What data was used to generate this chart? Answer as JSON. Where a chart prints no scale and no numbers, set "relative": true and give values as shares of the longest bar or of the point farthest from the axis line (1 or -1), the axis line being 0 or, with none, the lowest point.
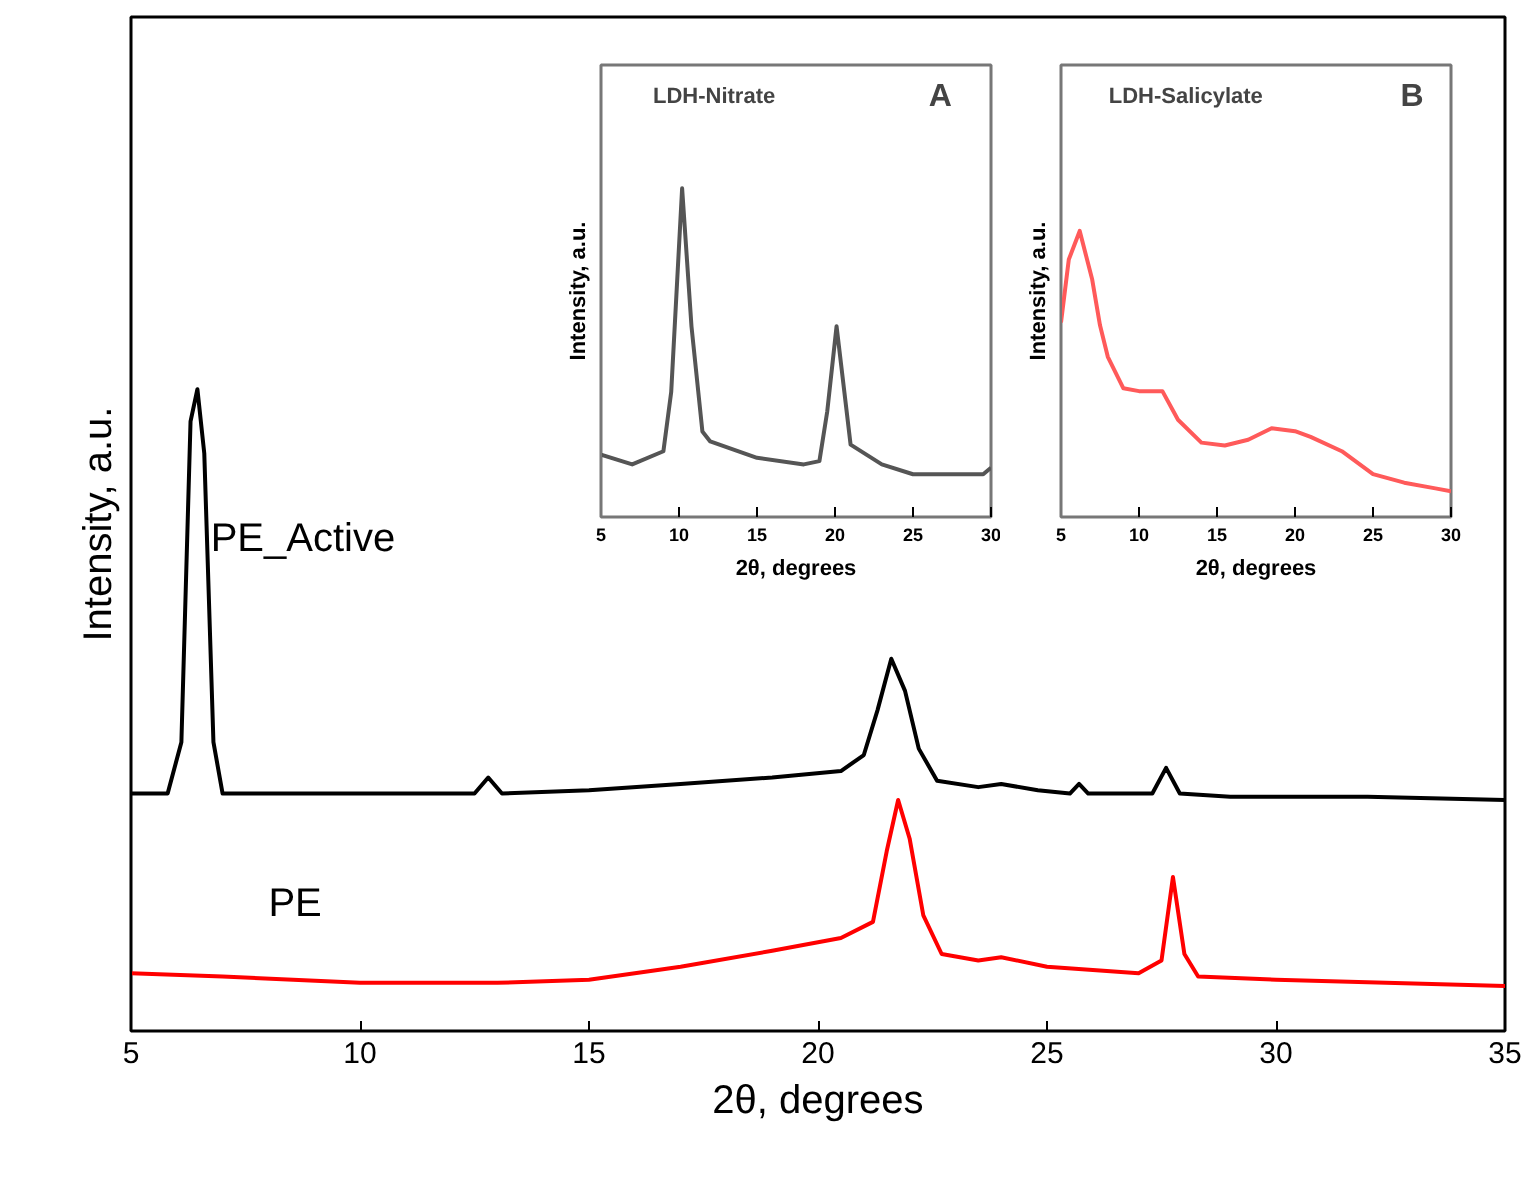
{
  "chart_data": [
    {
      "type": "line",
      "relative": true,
      "xlabel": "2θ, degrees",
      "ylabel": "Intensity, a.u.",
      "xlim": [
        5,
        35
      ],
      "xticks": [
        5,
        10,
        15,
        20,
        25,
        30,
        35
      ],
      "series": [
        {
          "name": "PE_Active",
          "color": "#000000",
          "x": [
            5,
            5.8,
            6.1,
            6.3,
            6.45,
            6.6,
            6.8,
            7.0,
            10,
            12.5,
            12.8,
            13.1,
            15,
            17,
            19,
            20.5,
            21.0,
            21.3,
            21.6,
            21.9,
            22.2,
            22.6,
            23.5,
            24,
            24.8,
            25.5,
            25.7,
            25.9,
            27.3,
            27.6,
            27.9,
            29,
            32,
            35
          ],
          "values": [
            0.37,
            0.37,
            0.45,
            0.95,
            1.0,
            0.9,
            0.45,
            0.37,
            0.37,
            0.37,
            0.395,
            0.37,
            0.375,
            0.385,
            0.395,
            0.405,
            0.43,
            0.5,
            0.58,
            0.53,
            0.44,
            0.39,
            0.38,
            0.385,
            0.375,
            0.37,
            0.385,
            0.37,
            0.37,
            0.41,
            0.37,
            0.365,
            0.365,
            0.36
          ]
        },
        {
          "name": "PE",
          "color": "#ff0000",
          "x": [
            5,
            7,
            10,
            13,
            15,
            17,
            19,
            20.5,
            21.2,
            21.5,
            21.75,
            22.0,
            22.3,
            22.7,
            23.5,
            24,
            25,
            27,
            27.5,
            27.75,
            28.0,
            28.3,
            30,
            35
          ],
          "values": [
            0.09,
            0.085,
            0.075,
            0.075,
            0.08,
            0.1,
            0.125,
            0.145,
            0.17,
            0.28,
            0.36,
            0.3,
            0.18,
            0.12,
            0.11,
            0.115,
            0.1,
            0.09,
            0.11,
            0.24,
            0.12,
            0.085,
            0.08,
            0.07
          ]
        }
      ]
    },
    {
      "type": "line",
      "relative": true,
      "title": "LDH-Nitrate",
      "annotations": [
        "A"
      ],
      "xlabel": "2θ, degrees",
      "ylabel": "Intensity, a.u.",
      "xlim": [
        5,
        30
      ],
      "xticks": [
        5,
        10,
        15,
        20,
        25,
        30
      ],
      "series": [
        {
          "color": "#555555",
          "x": [
            5,
            7,
            9,
            9.5,
            10.2,
            10.8,
            11.5,
            12,
            15,
            18,
            19,
            19.5,
            20.1,
            20.6,
            21,
            23,
            25,
            28,
            29.5,
            30
          ],
          "values": [
            0.19,
            0.16,
            0.2,
            0.38,
            1.0,
            0.58,
            0.26,
            0.23,
            0.18,
            0.16,
            0.17,
            0.32,
            0.58,
            0.38,
            0.22,
            0.16,
            0.13,
            0.13,
            0.13,
            0.15
          ]
        }
      ]
    },
    {
      "type": "line",
      "relative": true,
      "title": "LDH-Salicylate",
      "annotations": [
        "B"
      ],
      "xlabel": "2θ, degrees",
      "ylabel": "Intensity, a.u.",
      "xlim": [
        5,
        30
      ],
      "xticks": [
        5,
        10,
        15,
        20,
        25,
        30
      ],
      "series": [
        {
          "color": "#ff5a5a",
          "x": [
            5,
            5.5,
            6.2,
            7,
            7.5,
            8,
            9,
            10,
            11.5,
            12.5,
            14,
            15.5,
            17,
            18.5,
            20,
            21,
            23,
            25,
            27,
            29,
            30
          ],
          "values": [
            0.68,
            0.9,
            1.0,
            0.83,
            0.67,
            0.56,
            0.45,
            0.44,
            0.44,
            0.34,
            0.26,
            0.25,
            0.27,
            0.31,
            0.3,
            0.28,
            0.23,
            0.15,
            0.12,
            0.1,
            0.09
          ]
        }
      ]
    }
  ]
}
